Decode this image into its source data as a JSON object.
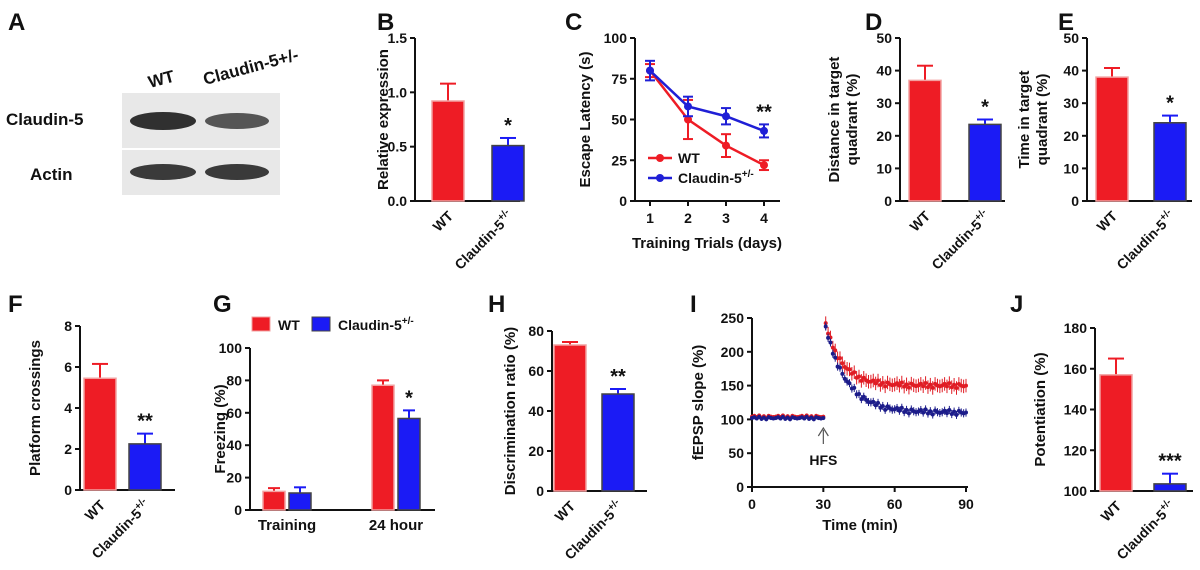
{
  "panels": {
    "A": {
      "letter": "A",
      "lanes": [
        "WT",
        "Claudin-5+/-"
      ],
      "bands": [
        "Claudin-5",
        "Actin"
      ]
    }
  },
  "colors": {
    "wt": "#ee1c25",
    "het": "#1b1bf5",
    "wt_bar_edge": "#f2a0a0",
    "het_line": "#1f1fd6",
    "lfp_wt": "#e01c24",
    "lfp_het": "#1c1c8a"
  },
  "chart_data": [
    {
      "id": "B",
      "letter": "B",
      "type": "bar",
      "categories": [
        "WT",
        "Claudin-5+/-"
      ],
      "tick_main": [
        "WT",
        "Claudin-5"
      ],
      "tick_sup": [
        "",
        "+/-"
      ],
      "values": [
        0.92,
        0.51
      ],
      "errors": [
        0.16,
        0.07
      ],
      "ylabel": [
        "Relative expression"
      ],
      "ylim": [
        0,
        1.5
      ],
      "yticks": [
        0.0,
        0.5,
        1.0,
        1.5
      ],
      "ytick_labels": [
        "0.0",
        "0.5",
        "1.0",
        "1.5"
      ],
      "significance": [
        "",
        "*"
      ]
    },
    {
      "id": "C",
      "letter": "C",
      "type": "line",
      "x": [
        1,
        2,
        3,
        4
      ],
      "xticks": [
        1,
        2,
        3,
        4
      ],
      "xtick_labels": [
        "1",
        "2",
        "3",
        "4"
      ],
      "xlabel": "Training Trials (days)",
      "ylabel": [
        "Escape Latency (s)"
      ],
      "ylim": [
        0,
        100
      ],
      "yticks": [
        0,
        25,
        50,
        75,
        100
      ],
      "ytick_labels": [
        "0",
        "25",
        "50",
        "75",
        "100"
      ],
      "series": [
        {
          "name": "WT",
          "values": [
            80,
            50,
            34,
            22
          ],
          "errors": [
            4,
            12,
            7,
            3
          ]
        },
        {
          "name": "Claudin-5",
          "name_sup": "+/-",
          "values": [
            80,
            58,
            52,
            43
          ],
          "errors": [
            6,
            6,
            5,
            4
          ]
        }
      ],
      "annotation": "**",
      "annotation_x": 4,
      "legend": "lower-left"
    },
    {
      "id": "D",
      "letter": "D",
      "type": "bar",
      "categories": [
        "WT",
        "Claudin-5+/-"
      ],
      "tick_main": [
        "WT",
        "Claudin-5"
      ],
      "tick_sup": [
        "",
        "+/-"
      ],
      "values": [
        37,
        23.5
      ],
      "errors": [
        4.5,
        1.5
      ],
      "ylabel": [
        "Distance in target",
        "quadrant (%)"
      ],
      "ylim": [
        0,
        50
      ],
      "yticks": [
        0,
        10,
        20,
        30,
        40,
        50
      ],
      "ytick_labels": [
        "0",
        "10",
        "20",
        "30",
        "40",
        "50"
      ],
      "significance": [
        "",
        "*"
      ]
    },
    {
      "id": "E",
      "letter": "E",
      "type": "bar",
      "categories": [
        "WT",
        "Claudin-5+/-"
      ],
      "tick_main": [
        "WT",
        "Claudin-5"
      ],
      "tick_sup": [
        "",
        "+/-"
      ],
      "values": [
        38,
        24
      ],
      "errors": [
        2.8,
        2.2
      ],
      "ylabel": [
        "Time in target",
        "quadrant (%)"
      ],
      "ylim": [
        0,
        50
      ],
      "yticks": [
        0,
        10,
        20,
        30,
        40,
        50
      ],
      "ytick_labels": [
        "0",
        "10",
        "20",
        "30",
        "40",
        "50"
      ],
      "significance": [
        "",
        "*"
      ]
    },
    {
      "id": "F",
      "letter": "F",
      "type": "bar",
      "categories": [
        "WT",
        "Claudin-5+/-"
      ],
      "tick_main": [
        "WT",
        "Claudin-5"
      ],
      "tick_sup": [
        "",
        "+/-"
      ],
      "values": [
        5.45,
        2.25
      ],
      "errors": [
        0.7,
        0.5
      ],
      "ylabel": [
        "Platform crossings"
      ],
      "ylim": [
        0,
        8
      ],
      "yticks": [
        0,
        2,
        4,
        6,
        8
      ],
      "ytick_labels": [
        "0",
        "2",
        "4",
        "6",
        "8"
      ],
      "significance": [
        "",
        "**"
      ]
    },
    {
      "id": "G",
      "letter": "G",
      "type": "bar",
      "categories": [
        "Training",
        "24 hour"
      ],
      "series": [
        {
          "name": "WT",
          "values": [
            11.5,
            77
          ],
          "errors": [
            2,
            3
          ]
        },
        {
          "name": "Claudin-5",
          "name_sup": "+/-",
          "values": [
            10.5,
            56.5
          ],
          "errors": [
            3.5,
            5
          ]
        }
      ],
      "ylabel": [
        "Freezing (%)"
      ],
      "ylim": [
        0,
        100
      ],
      "yticks": [
        0,
        20,
        40,
        60,
        80,
        100
      ],
      "ytick_labels": [
        "0",
        "20",
        "40",
        "60",
        "80",
        "100"
      ],
      "significance": [
        [
          "",
          ""
        ],
        [
          "",
          "*"
        ]
      ],
      "legend": "top"
    },
    {
      "id": "H",
      "letter": "H",
      "type": "bar",
      "categories": [
        "WT",
        "Claudin-5+/-"
      ],
      "tick_main": [
        "WT",
        "Claudin-5"
      ],
      "tick_sup": [
        "",
        "+/-"
      ],
      "values": [
        73,
        48.5
      ],
      "errors": [
        1.5,
        2.5
      ],
      "ylabel": [
        "Discrimination ratio (%)"
      ],
      "ylim": [
        0,
        80
      ],
      "yticks": [
        0,
        20,
        40,
        60,
        80
      ],
      "ytick_labels": [
        "0",
        "20",
        "40",
        "60",
        "80"
      ],
      "significance": [
        "",
        "**"
      ]
    },
    {
      "id": "I",
      "letter": "I",
      "type": "scatter",
      "xlabel": "Time (min)",
      "ylabel": [
        "fEPSP slope (%)"
      ],
      "xlim": [
        0,
        90
      ],
      "ylim": [
        0,
        250
      ],
      "xticks": [
        0,
        30,
        60,
        90
      ],
      "xtick_labels": [
        "0",
        "30",
        "60",
        "90"
      ],
      "yticks": [
        0,
        50,
        100,
        150,
        200,
        250
      ],
      "ytick_labels": [
        "0",
        "50",
        "100",
        "150",
        "200",
        "250"
      ],
      "annotation": "HFS",
      "annotation_x": 30,
      "series": [
        {
          "name": "WT",
          "baseline": {
            "x_range": [
              0,
              30
            ],
            "level": 104
          },
          "post": {
            "x_range": [
              31,
              90
            ],
            "peak": 240,
            "plateau": 150,
            "tau_min": 7
          },
          "error": 10
        },
        {
          "name": "Claudin-5+/-",
          "baseline": {
            "x_range": [
              0,
              30
            ],
            "level": 102
          },
          "post": {
            "x_range": [
              31,
              90
            ],
            "peak": 235,
            "plateau": 110,
            "tau_min": 9
          },
          "error": 6
        }
      ]
    },
    {
      "id": "J",
      "letter": "J",
      "type": "bar",
      "categories": [
        "WT",
        "Claudin-5+/-"
      ],
      "tick_main": [
        "WT",
        "Claudin-5"
      ],
      "tick_sup": [
        "",
        "+/-"
      ],
      "values": [
        157,
        103.5
      ],
      "errors": [
        8,
        5
      ],
      "ylabel": [
        "Potentiation (%)"
      ],
      "ylim": [
        100,
        180
      ],
      "yticks": [
        100,
        120,
        140,
        160,
        180
      ],
      "ytick_labels": [
        "100",
        "120",
        "140",
        "160",
        "180"
      ],
      "significance": [
        "",
        "***"
      ]
    }
  ]
}
